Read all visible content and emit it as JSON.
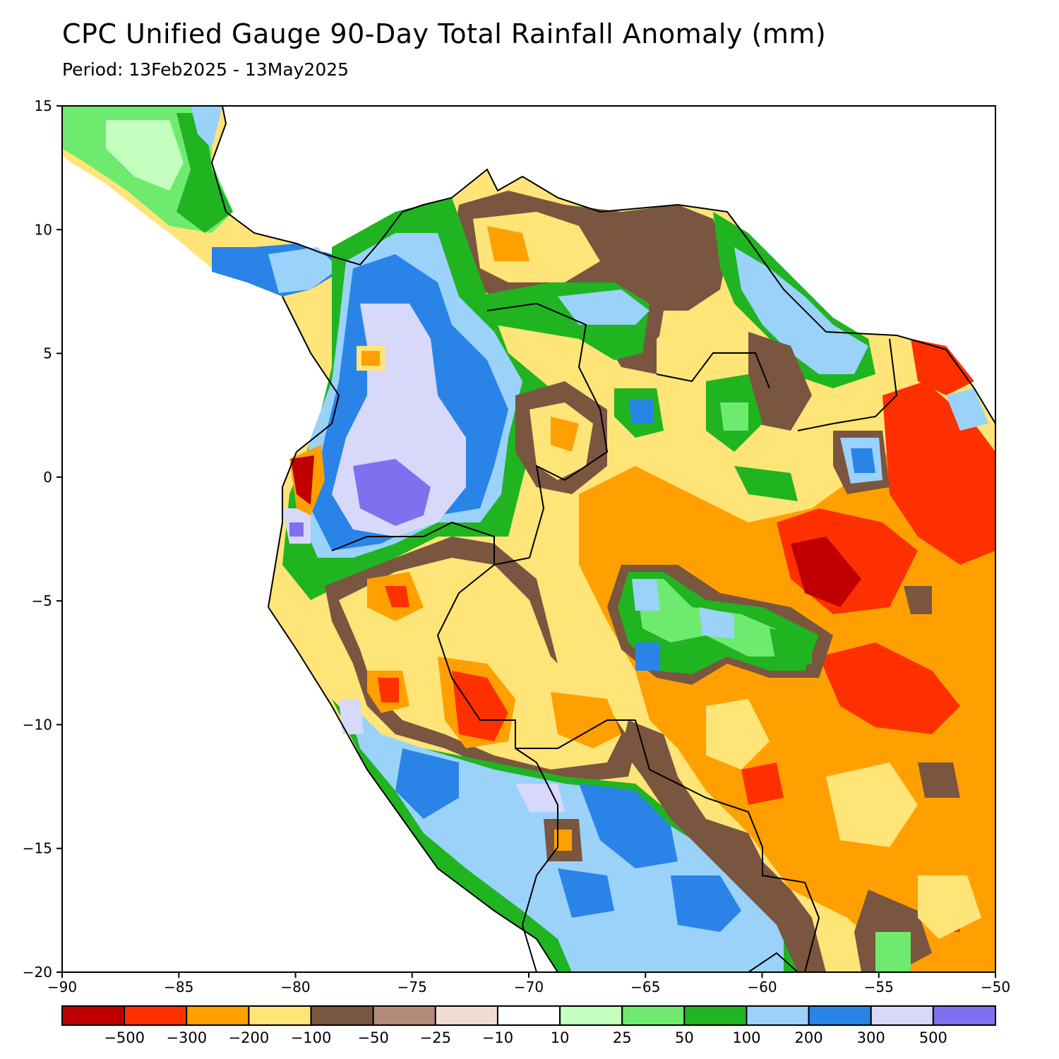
{
  "title": "CPC Unified Gauge 90-Day Total Rainfall Anomaly (mm)",
  "subtitle": "Period: 13Feb2025 - 13May2025",
  "map": {
    "lon_range": [
      -90,
      -50
    ],
    "lat_range": [
      -20,
      15
    ],
    "lon_ticks": [
      -90,
      -85,
      -80,
      -75,
      -70,
      -65,
      -60,
      -55,
      -50
    ],
    "lon_tick_labels": [
      "−90",
      "−85",
      "−80",
      "−75",
      "−70",
      "−65",
      "−60",
      "−55",
      "−50"
    ],
    "lat_ticks": [
      15,
      10,
      5,
      0,
      -5,
      -10,
      -15,
      -20
    ],
    "lat_tick_labels": [
      "15",
      "10",
      "5",
      "0",
      "−5",
      "−10",
      "−15",
      "−20"
    ],
    "ocean_color": "#ffffff",
    "border_color": "#000000",
    "state_border_color": "#9a9a9a"
  },
  "colorbar": {
    "colors": [
      "#c00000",
      "#ff3000",
      "#ffa000",
      "#ffe478",
      "#7a5540",
      "#b48a7a",
      "#f0dcd2",
      "#ffffff",
      "#c4ffc0",
      "#6eeb6e",
      "#20b420",
      "#9ad2fa",
      "#2a84e8",
      "#d8d8fa",
      "#8070f0"
    ],
    "labels": [
      "−500",
      "−300",
      "−200",
      "−100",
      "−50",
      "−25",
      "−10",
      "10",
      "25",
      "50",
      "100",
      "200",
      "300",
      "500"
    ]
  }
}
